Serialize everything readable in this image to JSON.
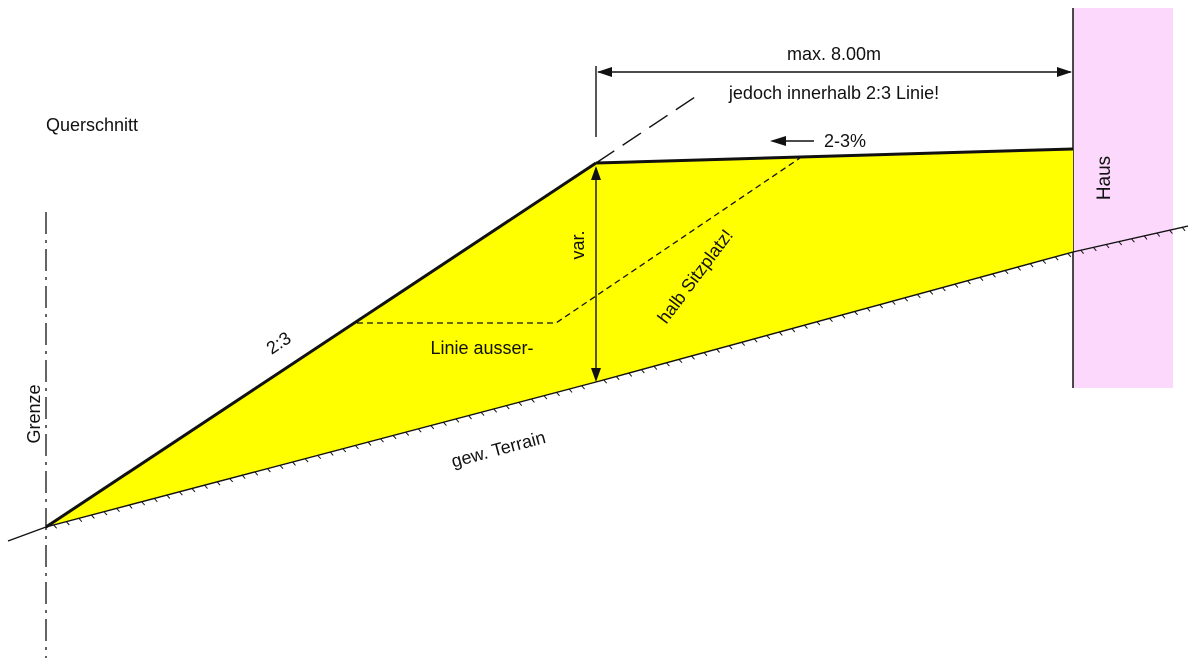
{
  "title": "Querschnitt",
  "labels": {
    "max_distance": "max. 8.00m",
    "within_line": "jedoch innerhalb 2:3 Linie!",
    "slope_arrow": "2-3%",
    "house": "Haus",
    "variable_height": "var.",
    "outside_seat": "halb Sitzplatz!",
    "line_outside": "Linie ausser-",
    "slope_ratio": "2:3",
    "boundary": "Grenze",
    "natural_terrain": "gew. Terrain"
  },
  "colors": {
    "fill": "#ffff00",
    "house": "#fcd9fc",
    "line": "#111111"
  }
}
